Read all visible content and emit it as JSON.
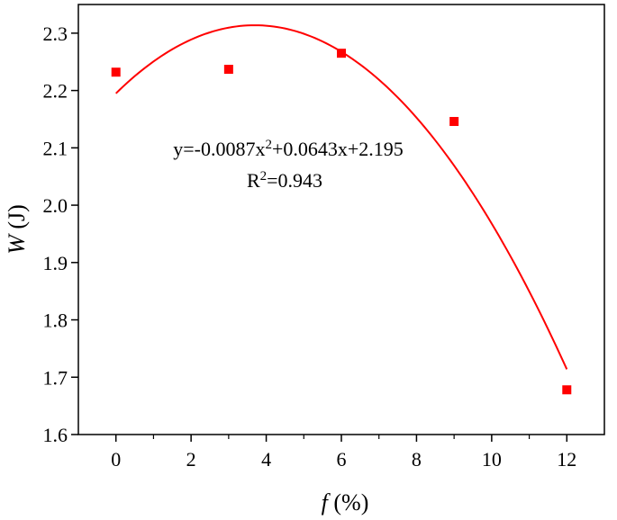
{
  "chart_data": {
    "type": "scatter",
    "title": "",
    "xlabel": {
      "var": "f",
      "unit": " (%)"
    },
    "ylabel": {
      "var": "W",
      "unit": " (J)"
    },
    "xlim": [
      -1,
      13
    ],
    "ylim": [
      1.6,
      2.35
    ],
    "x_major_ticks": [
      0,
      2,
      4,
      6,
      8,
      10,
      12
    ],
    "x_minor_ticks": [
      1,
      3,
      5,
      7,
      9,
      11
    ],
    "y_major_ticks": [
      1.6,
      1.7,
      1.8,
      1.9,
      2.0,
      2.1,
      2.2,
      2.3
    ],
    "x_tick_labels": [
      "0",
      "2",
      "4",
      "6",
      "8",
      "10",
      "12"
    ],
    "y_tick_labels": [
      "1.6",
      "1.7",
      "1.8",
      "1.9",
      "2.0",
      "2.1",
      "2.2",
      "2.3"
    ],
    "grid": false,
    "series": [
      {
        "kind": "scatter",
        "marker": "square",
        "color": "#ff0000",
        "points": [
          {
            "x": 0,
            "y": 2.232
          },
          {
            "x": 3,
            "y": 2.237
          },
          {
            "x": 6,
            "y": 2.265
          },
          {
            "x": 9,
            "y": 2.146
          },
          {
            "x": 12,
            "y": 1.678
          }
        ]
      },
      {
        "kind": "fit",
        "color": "#ff0000",
        "fit": {
          "a": -0.0087,
          "b": 0.0643,
          "c": 2.195,
          "x_range": [
            0,
            12
          ]
        }
      }
    ],
    "annotation": {
      "equation_parts": [
        "y=-0.0087x",
        "2",
        "+0.0643x+2.195"
      ],
      "r2_parts": [
        "R",
        "2",
        "=0.943"
      ]
    }
  }
}
